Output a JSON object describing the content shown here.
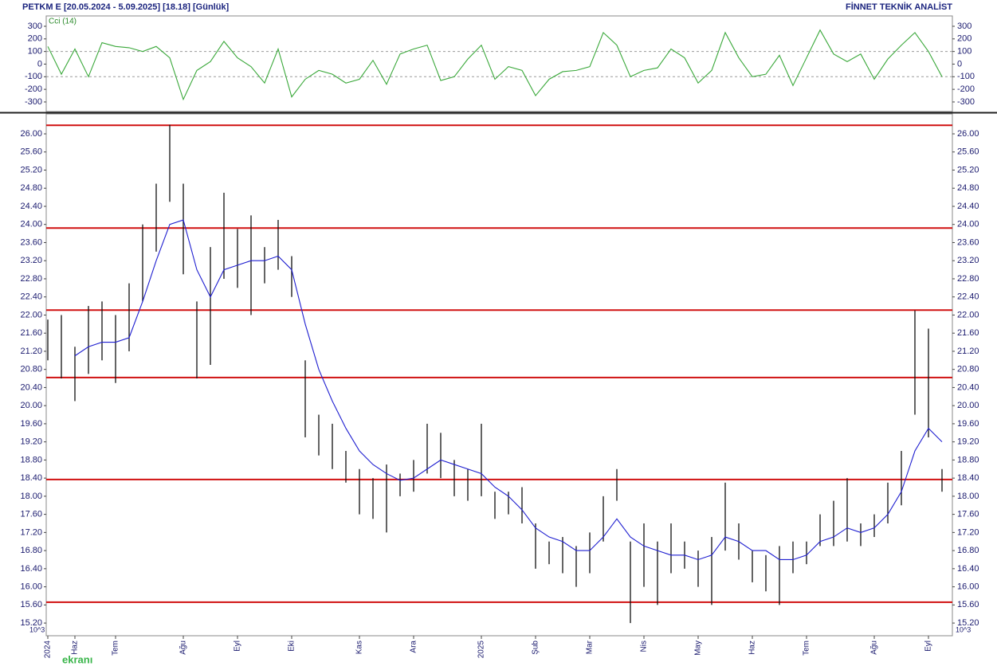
{
  "header": "PETKM E  [20.05.2024 - 5.09.2025]  [18.18]  [Günlük]",
  "brand": "FİNNET TEKNİK ANALİST",
  "scale_note": "10^3",
  "watermark": "ekranı",
  "chart_data": [
    {
      "type": "line",
      "title": "Cci (14)",
      "color": "#3aa83a",
      "ylim": [
        -376,
        382
      ],
      "yticks": [
        300,
        200,
        100,
        0,
        -100,
        -200,
        -300
      ],
      "hlines": [
        100,
        -100
      ],
      "hline_color": "#9a9a9a",
      "values": [
        140,
        -80,
        120,
        -100,
        170,
        140,
        130,
        100,
        140,
        50,
        -280,
        -50,
        20,
        180,
        50,
        -20,
        -150,
        120,
        -260,
        -120,
        -50,
        -80,
        -150,
        -120,
        30,
        -160,
        80,
        120,
        150,
        -130,
        -100,
        40,
        150,
        -120,
        -20,
        -50,
        -250,
        -120,
        -60,
        -50,
        -20,
        250,
        150,
        -100,
        -50,
        -30,
        120,
        50,
        -150,
        -50,
        250,
        50,
        -100,
        -80,
        70,
        -170,
        50,
        270,
        80,
        20,
        80,
        -120,
        40,
        150,
        250,
        100,
        -100
      ]
    },
    {
      "type": "range",
      "bar_color": "#111111",
      "ma_color": "#1f1fd0",
      "hline_color": "#d01010",
      "ylim": [
        14.92,
        26.44
      ],
      "yticks": [
        {
          "value": 15.2,
          "label": "15.20"
        },
        {
          "value": 15.6,
          "label": "15.60"
        },
        {
          "value": 16,
          "label": "16.00"
        },
        {
          "value": 16.4,
          "label": "16.40"
        },
        {
          "value": 16.8,
          "label": "16.80"
        },
        {
          "value": 17.2,
          "label": "17.20"
        },
        {
          "value": 17.6,
          "label": "17.60"
        },
        {
          "value": 18,
          "label": "18.00"
        },
        {
          "value": 18.4,
          "label": "18.40"
        },
        {
          "value": 18.8,
          "label": "18.80"
        },
        {
          "value": 19.2,
          "label": "19.20"
        },
        {
          "value": 19.6,
          "label": "19.60"
        },
        {
          "value": 20,
          "label": "20.00"
        },
        {
          "value": 20.4,
          "label": "20.40"
        },
        {
          "value": 20.8,
          "label": "20.80"
        },
        {
          "value": 21.2,
          "label": "21.20"
        },
        {
          "value": 21.6,
          "label": "21.60"
        },
        {
          "value": 22,
          "label": "22.00"
        },
        {
          "value": 22.4,
          "label": "22.40"
        },
        {
          "value": 22.8,
          "label": "22.80"
        },
        {
          "value": 23.2,
          "label": "23.20"
        },
        {
          "value": 23.6,
          "label": "23.60"
        },
        {
          "value": 24,
          "label": "24.00"
        },
        {
          "value": 24.4,
          "label": "24.40"
        },
        {
          "value": 24.8,
          "label": "24.80"
        },
        {
          "value": 25.2,
          "label": "25.20"
        },
        {
          "value": 25.6,
          "label": "25.60"
        },
        {
          "value": 26,
          "label": "26.00"
        }
      ],
      "hlines": [
        26.19,
        23.92,
        22.11,
        20.62,
        18.37,
        15.66
      ],
      "categories": [
        "2024",
        null,
        "Haz",
        null,
        null,
        "Tem",
        null,
        null,
        null,
        null,
        "Ağu",
        null,
        null,
        null,
        "Eyl",
        null,
        null,
        null,
        "Eki",
        null,
        null,
        null,
        null,
        "Kas",
        null,
        null,
        null,
        "Ara",
        null,
        null,
        null,
        null,
        "2025",
        null,
        null,
        null,
        "Şub",
        null,
        null,
        null,
        "Mar",
        null,
        null,
        null,
        "Nis",
        null,
        null,
        null,
        "May",
        null,
        null,
        null,
        "Haz",
        null,
        null,
        null,
        "Tem",
        null,
        null,
        null,
        null,
        "Ağu",
        null,
        null,
        null,
        "Eyl",
        null
      ],
      "high": [
        21.9,
        22.0,
        21.3,
        22.2,
        22.3,
        22.0,
        22.7,
        24.0,
        24.9,
        26.2,
        24.9,
        22.3,
        23.5,
        24.7,
        23.9,
        24.2,
        23.5,
        24.1,
        23.3,
        21.0,
        19.8,
        19.6,
        19.0,
        18.6,
        18.4,
        18.7,
        18.5,
        18.8,
        19.6,
        19.4,
        18.8,
        18.6,
        19.6,
        18.1,
        18.1,
        18.2,
        17.4,
        17.0,
        17.1,
        16.9,
        17.2,
        18.0,
        18.6,
        17.0,
        17.4,
        17.0,
        17.4,
        17.0,
        16.8,
        17.1,
        18.3,
        17.4,
        16.8,
        16.7,
        16.9,
        17.0,
        17.0,
        17.6,
        17.9,
        18.4,
        17.4,
        17.6,
        18.3,
        19.0,
        22.1,
        21.7,
        18.6
      ],
      "low": [
        21.0,
        20.6,
        20.1,
        20.7,
        21.0,
        20.5,
        21.2,
        22.3,
        23.4,
        24.5,
        22.9,
        20.6,
        20.9,
        22.8,
        22.6,
        22.0,
        22.7,
        23.0,
        22.4,
        19.3,
        18.9,
        18.6,
        18.3,
        17.6,
        17.5,
        17.2,
        18.0,
        18.1,
        18.5,
        18.4,
        18.0,
        17.9,
        18.0,
        17.5,
        17.6,
        17.4,
        16.4,
        16.5,
        16.3,
        16.0,
        16.3,
        17.0,
        17.9,
        15.2,
        16.0,
        15.6,
        16.3,
        16.4,
        16.0,
        15.6,
        16.8,
        16.6,
        16.1,
        15.9,
        15.6,
        16.3,
        16.5,
        16.9,
        16.9,
        17.0,
        16.9,
        17.1,
        17.4,
        17.8,
        19.8,
        19.3,
        18.1
      ],
      "ma": [
        null,
        null,
        21.1,
        21.3,
        21.4,
        21.4,
        21.5,
        22.3,
        23.2,
        24.0,
        24.1,
        23.0,
        22.4,
        23.0,
        23.1,
        23.2,
        23.2,
        23.3,
        23.0,
        21.8,
        20.8,
        20.1,
        19.5,
        19.0,
        18.7,
        18.5,
        18.35,
        18.4,
        18.6,
        18.8,
        18.7,
        18.6,
        18.5,
        18.2,
        18.0,
        17.7,
        17.3,
        17.1,
        17.0,
        16.8,
        16.8,
        17.1,
        17.5,
        17.1,
        16.9,
        16.8,
        16.7,
        16.7,
        16.6,
        16.7,
        17.1,
        17.0,
        16.8,
        16.8,
        16.6,
        16.6,
        16.7,
        17.0,
        17.1,
        17.3,
        17.2,
        17.3,
        17.6,
        18.1,
        19.0,
        19.5,
        19.2
      ]
    }
  ]
}
